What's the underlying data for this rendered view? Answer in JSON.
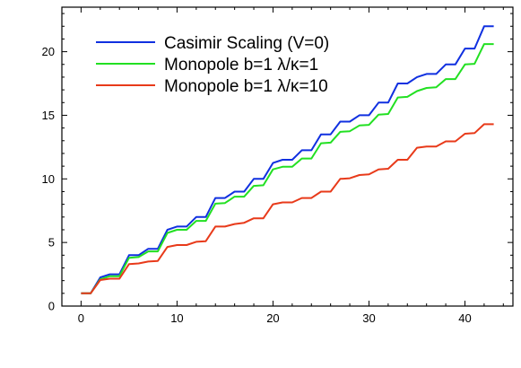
{
  "chart_data": {
    "type": "line",
    "title": "",
    "xlabel": "",
    "ylabel": "",
    "xlim": [
      -2,
      45
    ],
    "ylim": [
      0,
      23.5
    ],
    "xticks": [
      0,
      10,
      20,
      30,
      40
    ],
    "yticks": [
      0,
      5,
      10,
      15,
      20
    ],
    "grid": false,
    "legend_position": "top-left",
    "x": [
      0,
      1,
      2,
      3,
      4,
      5,
      6,
      7,
      8,
      9,
      10,
      11,
      12,
      13,
      14,
      15,
      16,
      17,
      18,
      19,
      20,
      21,
      22,
      23,
      24,
      25,
      26,
      27,
      28,
      29,
      30,
      31,
      32,
      33,
      34,
      35,
      36,
      37,
      38,
      39,
      40,
      41,
      42,
      43
    ],
    "series": [
      {
        "name": "Casimir Scaling (V=0)",
        "color": "#1030e0",
        "values": [
          1.0,
          1.0,
          2.25,
          2.5,
          2.5,
          4.0,
          4.0,
          4.5,
          4.5,
          6.0,
          6.25,
          6.25,
          7.0,
          7.0,
          8.5,
          8.5,
          9.0,
          9.0,
          10.0,
          10.0,
          11.25,
          11.5,
          11.5,
          12.25,
          12.25,
          13.5,
          13.5,
          14.5,
          14.5,
          15.0,
          15.0,
          16.0,
          16.0,
          17.5,
          17.5,
          18.0,
          18.25,
          18.25,
          19.0,
          19.0,
          20.25,
          20.25,
          22.0,
          22.0
        ]
      },
      {
        "name": "Monopole b=1 λ/κ=1",
        "color": "#22e022",
        "values": [
          1.0,
          1.0,
          2.1,
          2.35,
          2.35,
          3.8,
          3.85,
          4.3,
          4.3,
          5.75,
          6.0,
          6.0,
          6.7,
          6.7,
          8.05,
          8.1,
          8.6,
          8.6,
          9.45,
          9.5,
          10.75,
          10.95,
          10.95,
          11.6,
          11.6,
          12.8,
          12.85,
          13.7,
          13.75,
          14.2,
          14.25,
          15.05,
          15.1,
          16.4,
          16.45,
          16.9,
          17.15,
          17.2,
          17.85,
          17.85,
          19.0,
          19.05,
          20.6,
          20.6
        ]
      },
      {
        "name": "Monopole b=1 λ/κ=10",
        "color": "#e83a1a",
        "values": [
          1.0,
          1.0,
          2.05,
          2.15,
          2.15,
          3.3,
          3.35,
          3.5,
          3.55,
          4.65,
          4.8,
          4.8,
          5.05,
          5.1,
          6.25,
          6.25,
          6.45,
          6.55,
          6.9,
          6.9,
          8.0,
          8.15,
          8.15,
          8.5,
          8.5,
          9.0,
          9.0,
          10.0,
          10.05,
          10.3,
          10.35,
          10.75,
          10.8,
          11.5,
          11.5,
          12.45,
          12.55,
          12.55,
          12.95,
          12.95,
          13.55,
          13.6,
          14.3,
          14.3
        ]
      }
    ]
  }
}
